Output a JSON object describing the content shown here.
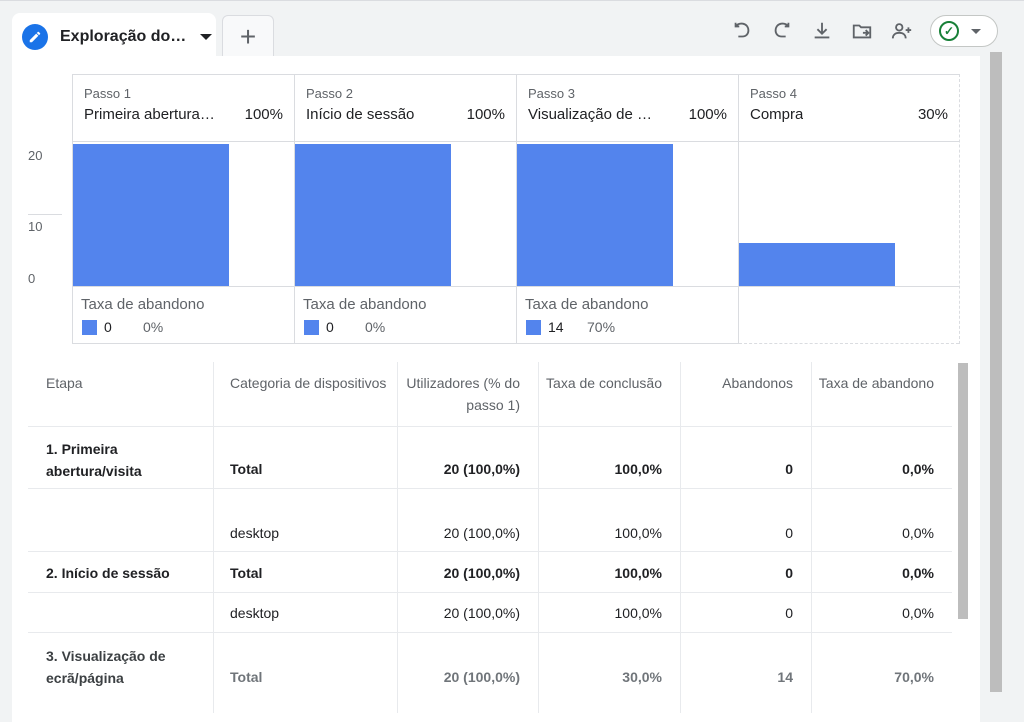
{
  "tab": {
    "label": "Exploração do…",
    "add_label": "+"
  },
  "toolbar": {
    "icons": [
      "undo-icon",
      "redo-icon",
      "download-icon",
      "share-folder-icon",
      "add-person-icon",
      "check-circle-icon"
    ]
  },
  "chart_data": {
    "type": "bar",
    "categories": [
      "Primeira abertura/visita",
      "Início de sessão",
      "Visualização de ecrã/página",
      "Compra"
    ],
    "values": [
      20,
      20,
      20,
      6
    ],
    "ylim": [
      0,
      20
    ],
    "yticks": [
      "20",
      "10",
      "0"
    ],
    "color": "#5384ed"
  },
  "steps": [
    {
      "num": "Passo 1",
      "name": "Primeira abertura…",
      "pct": "100%",
      "drop_title": "Taxa de abandono",
      "drop_count": "0",
      "drop_rate": "0%"
    },
    {
      "num": "Passo 2",
      "name": "Início de sessão",
      "pct": "100%",
      "drop_title": "Taxa de abandono",
      "drop_count": "0",
      "drop_rate": "0%"
    },
    {
      "num": "Passo 3",
      "name": "Visualização de …",
      "pct": "100%",
      "drop_title": "Taxa de abandono",
      "drop_count": "14",
      "drop_rate": "70%"
    },
    {
      "num": "Passo 4",
      "name": "Compra",
      "pct": "30%"
    }
  ],
  "table": {
    "headers": [
      "Etapa",
      "Categoria de dispositivos",
      "Utilizadores (% do passo 1)",
      "Taxa de conclusão",
      "Abandonos",
      "Taxa de abandono"
    ],
    "rows": [
      {
        "etapa": "1. Primeira abertura/visita",
        "cat": "Total",
        "users": "20 (100,0%)",
        "conc": "100,0%",
        "aband": "0",
        "taxa": "0,0%"
      },
      {
        "etapa": "",
        "cat": "desktop",
        "users": "20 (100,0%)",
        "conc": "100,0%",
        "aband": "0",
        "taxa": "0,0%"
      },
      {
        "etapa": "2. Início de sessão",
        "cat": "Total",
        "users": "20 (100,0%)",
        "conc": "100,0%",
        "aband": "0",
        "taxa": "0,0%"
      },
      {
        "etapa": "",
        "cat": "desktop",
        "users": "20 (100,0%)",
        "conc": "100,0%",
        "aband": "0",
        "taxa": "0,0%"
      },
      {
        "etapa": "3. Visualização de ecrã/página",
        "cat": "Total",
        "users": "20 (100,0%)",
        "conc": "30,0%",
        "aband": "14",
        "taxa": "70,0%"
      }
    ]
  }
}
